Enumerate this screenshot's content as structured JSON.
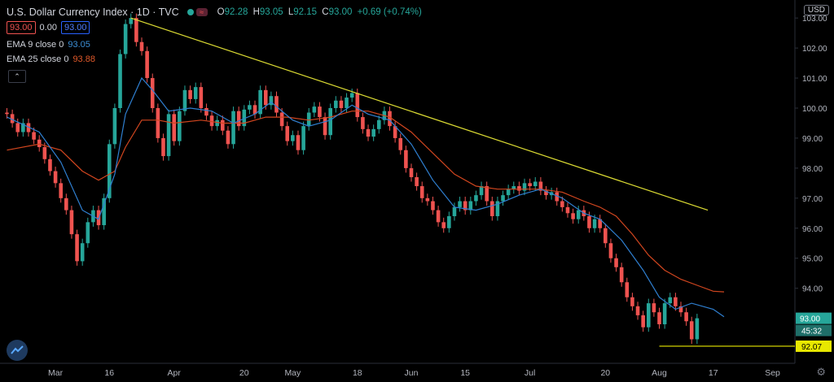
{
  "header": {
    "title": "U.S. Dollar Currency Index · 1D · TVC",
    "ohlc": [
      {
        "k": "O",
        "v": "92.28"
      },
      {
        "k": "H",
        "v": "93.05"
      },
      {
        "k": "L",
        "v": "92.15"
      },
      {
        "k": "C",
        "v": "93.00"
      }
    ],
    "change": "+0.69 (+0.74%)",
    "sell_price": "93.00",
    "spread": "0.00",
    "buy_price": "93.00",
    "currency": "USD"
  },
  "indicators": {
    "ema9_label": "EMA 9 close 0",
    "ema9_value": "93.05",
    "ema25_label": "EMA 25 close 0",
    "ema25_value": "93.88"
  },
  "colors": {
    "up": "#26a69a",
    "down": "#ef5350",
    "ema9": "#2f7fd0",
    "ema25": "#d2461f",
    "trendline": "#dddd33",
    "support": "#e8e800",
    "axis_text": "#b2b5be"
  },
  "icons": [
    "green-dot-icon",
    "wave-icon",
    "chevron-up-icon",
    "tradingview-logo-icon",
    "gear-icon"
  ],
  "chart_data": {
    "type": "candlestick",
    "ylim": [
      91.5,
      103.6
    ],
    "yticks": [
      "103.00",
      "102.00",
      "101.00",
      "100.00",
      "99.00",
      "98.00",
      "97.00",
      "96.00",
      "95.00",
      "94.00"
    ],
    "xticks": [
      {
        "label": "Mar",
        "i": 9
      },
      {
        "label": "16",
        "i": 19
      },
      {
        "label": "Apr",
        "i": 31
      },
      {
        "label": "20",
        "i": 44
      },
      {
        "label": "May",
        "i": 53
      },
      {
        "label": "18",
        "i": 65
      },
      {
        "label": "Jun",
        "i": 75
      },
      {
        "label": "15",
        "i": 85
      },
      {
        "label": "Jul",
        "i": 97
      },
      {
        "label": "20",
        "i": 111
      },
      {
        "label": "Aug",
        "i": 121
      },
      {
        "label": "17",
        "i": 131
      },
      {
        "label": "Sep",
        "i": 142
      }
    ],
    "last_price_label": "93.00",
    "countdown_label": "45:32",
    "support_label": "92.07",
    "support_value": 92.07,
    "trendline": {
      "from": {
        "i": 23,
        "v": 103.0
      },
      "to": {
        "i": 130,
        "v": 96.6
      }
    },
    "candles": [
      [
        99.85,
        99.8
      ],
      [
        99.8,
        99.5
      ],
      [
        99.5,
        99.2
      ],
      [
        99.2,
        99.5
      ],
      [
        99.5,
        99.2
      ],
      [
        99.2,
        98.95
      ],
      [
        98.95,
        98.7
      ],
      [
        98.7,
        98.3
      ],
      [
        98.3,
        97.9
      ],
      [
        97.9,
        97.5
      ],
      [
        97.5,
        97.0
      ],
      [
        97.0,
        96.6
      ],
      [
        96.6,
        95.8
      ],
      [
        95.8,
        94.9
      ],
      [
        94.9,
        95.5
      ],
      [
        95.5,
        96.2
      ],
      [
        96.2,
        96.6
      ],
      [
        96.6,
        96.1
      ],
      [
        96.1,
        97.0
      ],
      [
        97.0,
        98.8
      ],
      [
        98.8,
        100.0
      ],
      [
        100.0,
        101.8
      ],
      [
        101.8,
        102.8
      ],
      [
        102.8,
        103.0
      ],
      [
        103.0,
        102.2
      ],
      [
        102.2,
        101.9
      ],
      [
        101.9,
        101.0
      ],
      [
        101.0,
        100.0
      ],
      [
        100.0,
        99.0
      ],
      [
        99.0,
        98.4
      ],
      [
        98.4,
        99.8
      ],
      [
        99.8,
        98.9
      ],
      [
        98.9,
        99.9
      ],
      [
        99.9,
        100.6
      ],
      [
        100.6,
        100.3
      ],
      [
        100.3,
        100.7
      ],
      [
        100.7,
        100.0
      ],
      [
        100.0,
        99.75
      ],
      [
        99.75,
        99.4
      ],
      [
        99.4,
        99.6
      ],
      [
        99.6,
        99.25
      ],
      [
        99.25,
        98.8
      ],
      [
        98.8,
        99.9
      ],
      [
        99.9,
        99.4
      ],
      [
        99.4,
        99.95
      ],
      [
        99.95,
        100.1
      ],
      [
        100.1,
        99.8
      ],
      [
        99.8,
        100.6
      ],
      [
        100.6,
        100.1
      ],
      [
        100.1,
        100.4
      ],
      [
        100.4,
        99.85
      ],
      [
        99.85,
        99.4
      ],
      [
        99.4,
        98.9
      ],
      [
        98.9,
        99.1
      ],
      [
        99.1,
        98.6
      ],
      [
        98.6,
        99.4
      ],
      [
        99.4,
        99.85
      ],
      [
        99.85,
        100.05
      ],
      [
        100.05,
        99.7
      ],
      [
        99.7,
        99.1
      ],
      [
        99.1,
        100.0
      ],
      [
        100.0,
        100.25
      ],
      [
        100.25,
        100.0
      ],
      [
        100.0,
        100.35
      ],
      [
        100.35,
        100.5
      ],
      [
        100.5,
        99.7
      ],
      [
        99.7,
        99.3
      ],
      [
        99.3,
        99.05
      ],
      [
        99.05,
        99.3
      ],
      [
        99.3,
        99.6
      ],
      [
        99.6,
        99.9
      ],
      [
        99.9,
        99.4
      ],
      [
        99.4,
        99.0
      ],
      [
        99.0,
        98.6
      ],
      [
        98.6,
        98.0
      ],
      [
        98.0,
        97.7
      ],
      [
        97.7,
        97.4
      ],
      [
        97.4,
        97.0
      ],
      [
        97.0,
        96.9
      ],
      [
        96.9,
        96.6
      ],
      [
        96.6,
        96.2
      ],
      [
        96.2,
        96.0
      ],
      [
        96.0,
        96.4
      ],
      [
        96.4,
        96.7
      ],
      [
        96.7,
        96.9
      ],
      [
        96.9,
        96.6
      ],
      [
        96.6,
        96.9
      ],
      [
        96.9,
        97.1
      ],
      [
        97.1,
        97.4
      ],
      [
        97.4,
        96.9
      ],
      [
        96.9,
        96.4
      ],
      [
        96.4,
        96.9
      ],
      [
        96.9,
        97.1
      ],
      [
        97.1,
        97.3
      ],
      [
        97.3,
        97.4
      ],
      [
        97.4,
        97.25
      ],
      [
        97.25,
        97.5
      ],
      [
        97.5,
        97.4
      ],
      [
        97.4,
        97.55
      ],
      [
        97.55,
        97.25
      ],
      [
        97.25,
        97.1
      ],
      [
        97.1,
        97.2
      ],
      [
        97.2,
        96.9
      ],
      [
        96.9,
        96.7
      ],
      [
        96.7,
        96.5
      ],
      [
        96.5,
        96.3
      ],
      [
        96.3,
        96.6
      ],
      [
        96.6,
        96.4
      ],
      [
        96.4,
        96.0
      ],
      [
        96.0,
        96.3
      ],
      [
        96.3,
        96.0
      ],
      [
        96.0,
        95.5
      ],
      [
        95.5,
        95.0
      ],
      [
        95.0,
        94.7
      ],
      [
        94.7,
        94.2
      ],
      [
        94.2,
        93.7
      ],
      [
        93.7,
        93.4
      ],
      [
        93.4,
        93.1
      ],
      [
        93.1,
        92.7
      ],
      [
        92.7,
        93.5
      ],
      [
        93.5,
        93.2
      ],
      [
        93.2,
        92.8
      ],
      [
        92.8,
        93.5
      ],
      [
        93.5,
        93.7
      ],
      [
        93.7,
        93.4
      ],
      [
        93.4,
        93.2
      ],
      [
        93.2,
        92.9
      ],
      [
        92.9,
        92.3
      ],
      [
        92.3,
        93.0
      ]
    ],
    "wicks": 0.15,
    "ema9": [
      [
        0,
        99.7
      ],
      [
        6,
        99.2
      ],
      [
        10,
        98.2
      ],
      [
        14,
        96.6
      ],
      [
        17,
        96.3
      ],
      [
        20,
        97.8
      ],
      [
        22,
        99.8
      ],
      [
        25,
        101.0
      ],
      [
        27,
        100.6
      ],
      [
        30,
        99.9
      ],
      [
        34,
        100.0
      ],
      [
        38,
        99.9
      ],
      [
        42,
        99.5
      ],
      [
        46,
        99.8
      ],
      [
        49,
        100.2
      ],
      [
        53,
        99.6
      ],
      [
        56,
        99.4
      ],
      [
        60,
        99.6
      ],
      [
        64,
        100.1
      ],
      [
        67,
        99.8
      ],
      [
        71,
        99.6
      ],
      [
        75,
        98.8
      ],
      [
        79,
        97.6
      ],
      [
        83,
        96.7
      ],
      [
        87,
        96.6
      ],
      [
        91,
        96.8
      ],
      [
        95,
        97.1
      ],
      [
        99,
        97.3
      ],
      [
        103,
        97.0
      ],
      [
        107,
        96.5
      ],
      [
        110,
        96.3
      ],
      [
        114,
        95.6
      ],
      [
        118,
        94.6
      ],
      [
        121,
        93.7
      ],
      [
        124,
        93.3
      ],
      [
        127,
        93.5
      ],
      [
        131,
        93.3
      ],
      [
        133,
        93.05
      ]
    ],
    "ema25": [
      [
        0,
        98.6
      ],
      [
        6,
        98.8
      ],
      [
        10,
        98.6
      ],
      [
        14,
        97.9
      ],
      [
        17,
        97.6
      ],
      [
        20,
        97.9
      ],
      [
        22,
        98.7
      ],
      [
        25,
        99.6
      ],
      [
        28,
        99.6
      ],
      [
        31,
        99.5
      ],
      [
        36,
        99.6
      ],
      [
        40,
        99.5
      ],
      [
        44,
        99.5
      ],
      [
        48,
        99.7
      ],
      [
        52,
        99.7
      ],
      [
        56,
        99.6
      ],
      [
        60,
        99.7
      ],
      [
        64,
        99.9
      ],
      [
        67,
        99.9
      ],
      [
        71,
        99.7
      ],
      [
        75,
        99.2
      ],
      [
        79,
        98.5
      ],
      [
        83,
        97.8
      ],
      [
        87,
        97.4
      ],
      [
        91,
        97.3
      ],
      [
        95,
        97.3
      ],
      [
        99,
        97.3
      ],
      [
        103,
        97.2
      ],
      [
        107,
        96.9
      ],
      [
        110,
        96.7
      ],
      [
        113,
        96.4
      ],
      [
        116,
        95.8
      ],
      [
        119,
        95.1
      ],
      [
        122,
        94.6
      ],
      [
        125,
        94.3
      ],
      [
        128,
        94.1
      ],
      [
        131,
        93.9
      ],
      [
        133,
        93.88
      ]
    ]
  }
}
